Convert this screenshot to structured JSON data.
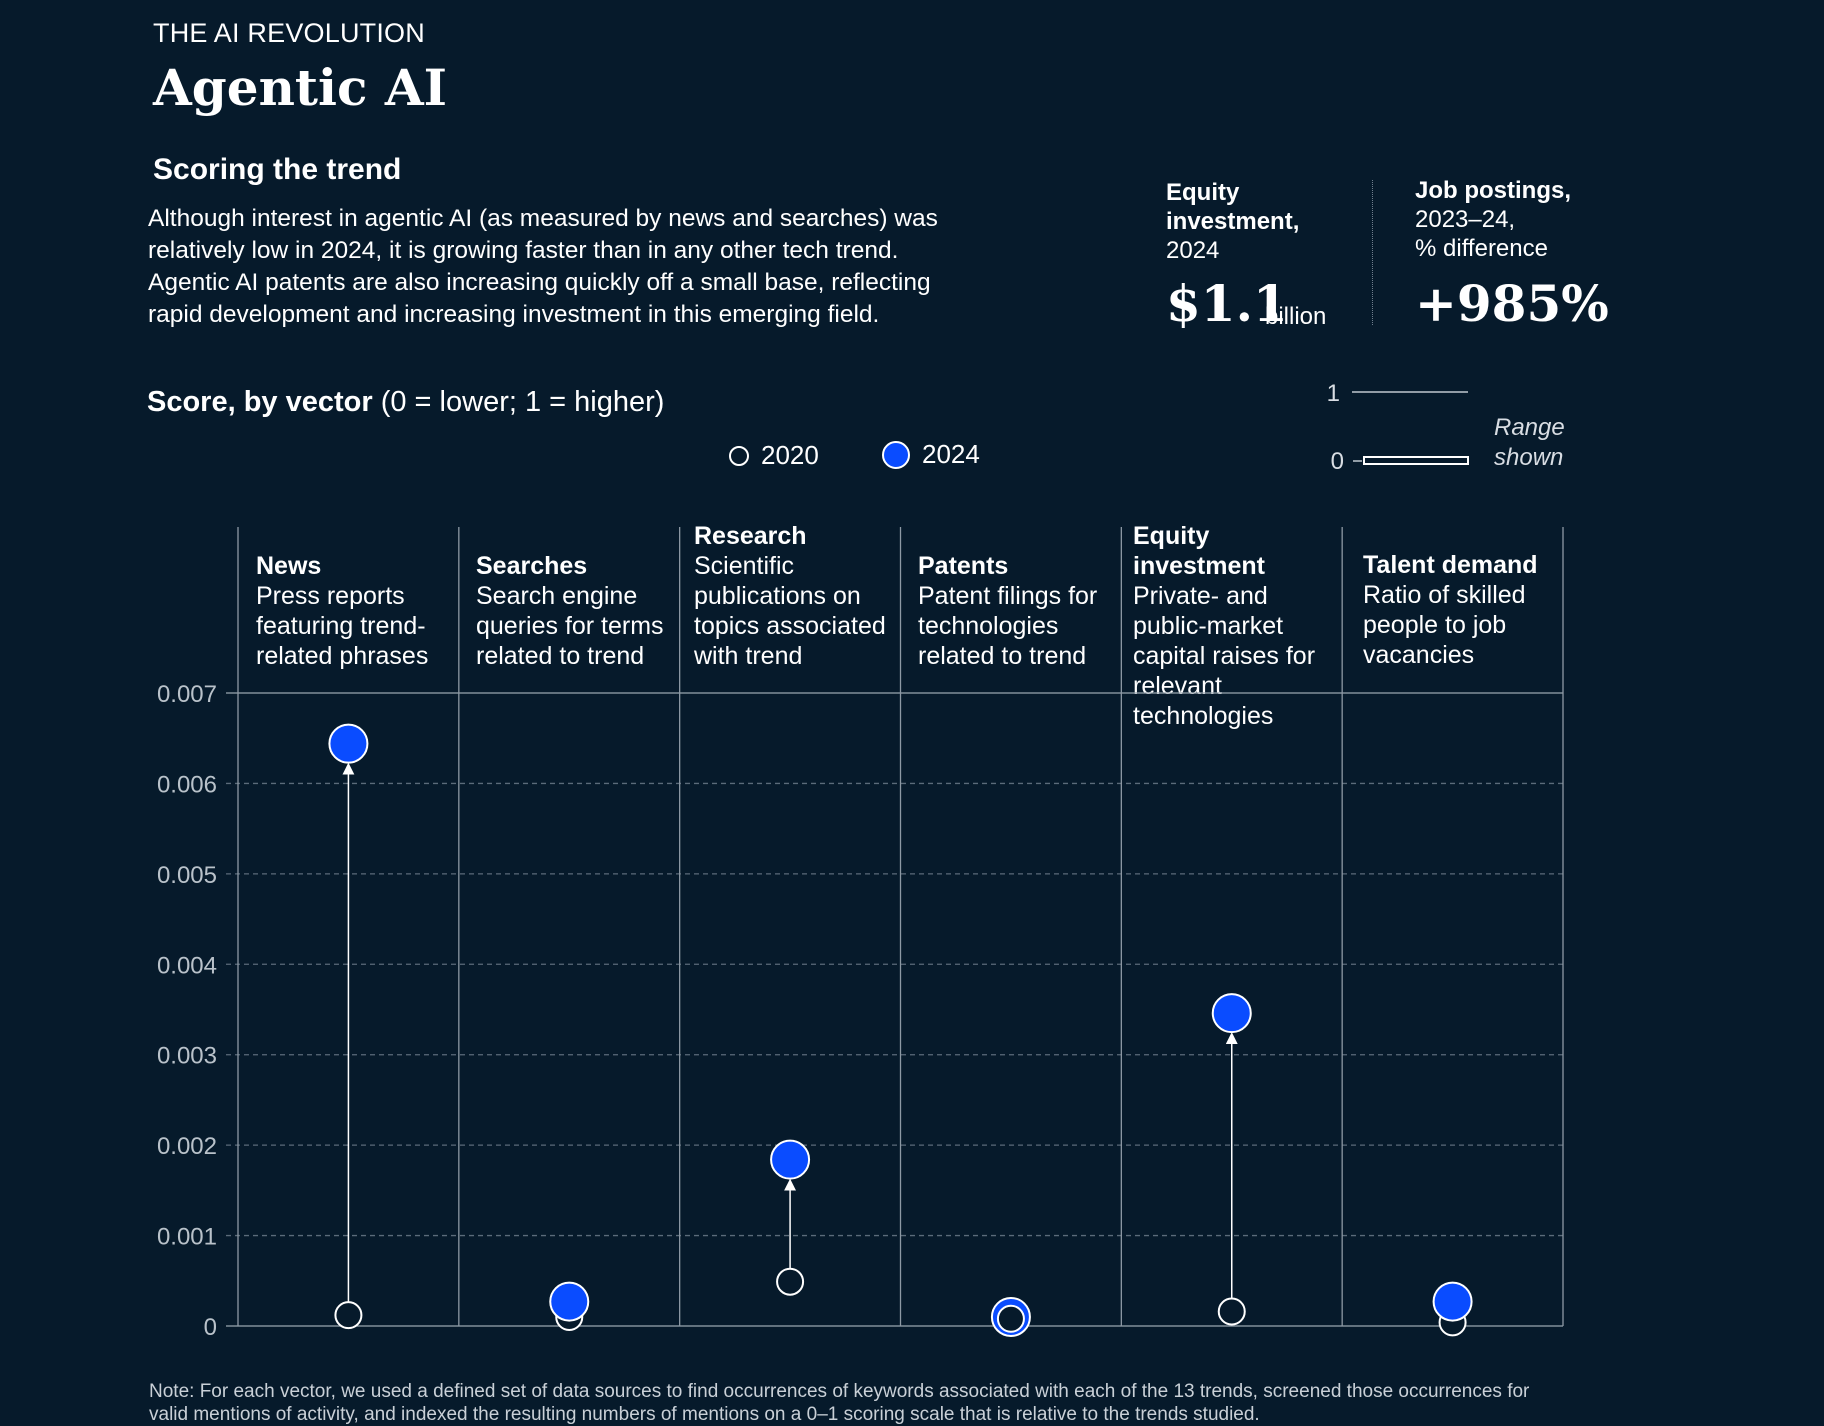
{
  "header": {
    "eyebrow": "THE AI REVOLUTION",
    "title": "Agentic AI",
    "section_title": "Scoring the trend",
    "description": "Although interest in agentic AI (as measured by news and searches) was relatively low in 2024, it is growing faster than in any other tech trend. Agentic AI patents are also increasing quickly off a small base, reflecting rapid development and increasing investment in this emerging field."
  },
  "kpis": {
    "equity_label_bold": "Equity investment,",
    "equity_label_sub": "2024",
    "equity_value": "$1.1",
    "equity_unit": "billion",
    "jobs_label_bold": "Job postings,",
    "jobs_label_sub1": "2023–24,",
    "jobs_label_sub2": "% difference",
    "jobs_value": "+985%"
  },
  "score_label": {
    "bold": "Score, by vector",
    "rest": " (0 = lower; 1 = higher)"
  },
  "legend": {
    "item_2020": "2020",
    "item_2024": "2024"
  },
  "range_indicator": {
    "top_tick": "1",
    "bottom_tick": "0",
    "label_line1": "Range",
    "label_line2": "shown"
  },
  "chart_data": {
    "type": "scatter",
    "categories": [
      "News",
      "Searches",
      "Research",
      "Patents",
      "Equity investment",
      "Talent demand"
    ],
    "category_descriptions": [
      "Press reports featuring trend-related phrases",
      "Search engine queries for terms related to trend",
      "Scientific publications on topics associated with trend",
      "Patent filings for technologies related to trend",
      "Private- and public-market capital raises for relevant technologies",
      "Ratio of skilled people to job vacancies"
    ],
    "series": [
      {
        "name": "2020",
        "values": [
          0.00012,
          0.0001,
          0.00049,
          8e-05,
          0.00016,
          4e-05
        ]
      },
      {
        "name": "2024",
        "values": [
          0.00644,
          0.00027,
          0.00184,
          0.0001,
          0.00346,
          0.00027
        ]
      }
    ],
    "ylim": [
      0,
      0.007
    ],
    "yticks": [
      "0",
      "0.001",
      "0.002",
      "0.003",
      "0.004",
      "0.005",
      "0.006",
      "0.007"
    ],
    "grid": true,
    "colors": {
      "2020": "#061a2b",
      "2024": "#0a4cff"
    }
  },
  "note": "Note: For each vector, we used a defined set of data sources to find occurrences of keywords associated with each of the 13 trends, screened those occurrences for valid mentions of activity, and indexed the resulting numbers of mentions on a 0–1 scoring scale that is relative to the trends studied."
}
